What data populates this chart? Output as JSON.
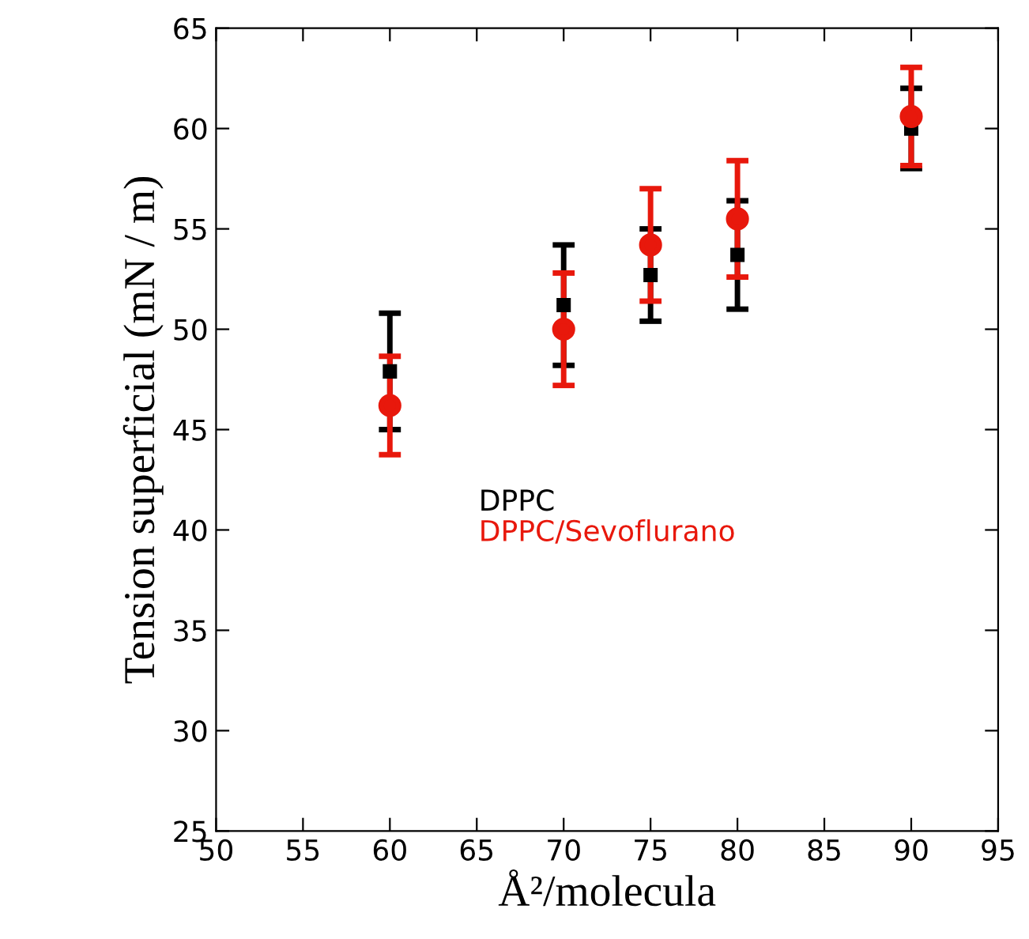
{
  "chart_data": {
    "type": "scatter",
    "xlabel": "Å²/molecula",
    "ylabel": "Tension superficial (mN / m)",
    "x": [
      60,
      70,
      75,
      80,
      90
    ],
    "series": [
      {
        "name": "DPPC",
        "color": "#000000",
        "marker": "square",
        "values": [
          47.9,
          51.2,
          52.7,
          53.7,
          60.0
        ],
        "errors": [
          2.9,
          3.0,
          2.3,
          2.7,
          2.0
        ]
      },
      {
        "name": "DPPC/Sevoflurano",
        "color": "#e8180c",
        "marker": "circle",
        "values": [
          46.2,
          50.0,
          54.2,
          55.5,
          60.6
        ],
        "errors": [
          2.45,
          2.8,
          2.8,
          2.9,
          2.45
        ]
      }
    ],
    "xlim": [
      50,
      95
    ],
    "xticks": [
      50,
      55,
      60,
      65,
      70,
      75,
      80,
      85,
      90,
      95
    ],
    "ylim": [
      25,
      65
    ],
    "yticks": [
      25,
      30,
      35,
      40,
      45,
      50,
      55,
      60,
      65
    ],
    "legend": "center",
    "grid": false
  }
}
